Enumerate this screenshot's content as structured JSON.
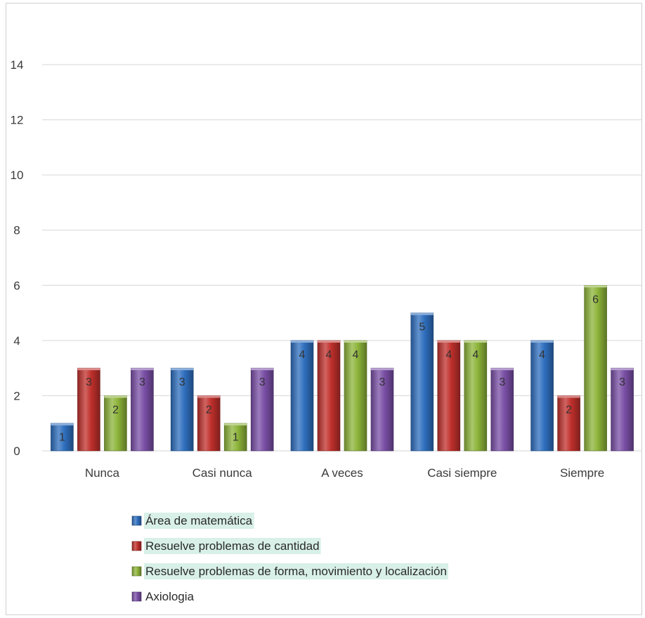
{
  "chart_data": {
    "type": "bar",
    "categories": [
      "Nunca",
      "Casi nunca",
      "A veces",
      "Casi siempre",
      "Siempre"
    ],
    "series": [
      {
        "name": "Área de matemática",
        "values": [
          1,
          3,
          4,
          5,
          4
        ],
        "color": "#2f6fbf",
        "highlight": true
      },
      {
        "name": "Resuelve problemas de cantidad",
        "values": [
          3,
          2,
          4,
          4,
          2
        ],
        "color": "#c0302c",
        "highlight": true
      },
      {
        "name": "Resuelve problemas de forma, movimiento y localización",
        "values": [
          2,
          1,
          4,
          4,
          6
        ],
        "color": "#8db43a",
        "highlight": true
      },
      {
        "name": "Axiologia",
        "values": [
          3,
          3,
          3,
          3,
          3
        ],
        "color": "#7a4fa6",
        "highlight": false
      }
    ],
    "ylim": [
      0,
      14
    ],
    "yticks": [
      0,
      2,
      4,
      6,
      8,
      10,
      12,
      14
    ],
    "grid": true,
    "legend_position": "bottom",
    "highlight_color": "#d8f0e8"
  }
}
